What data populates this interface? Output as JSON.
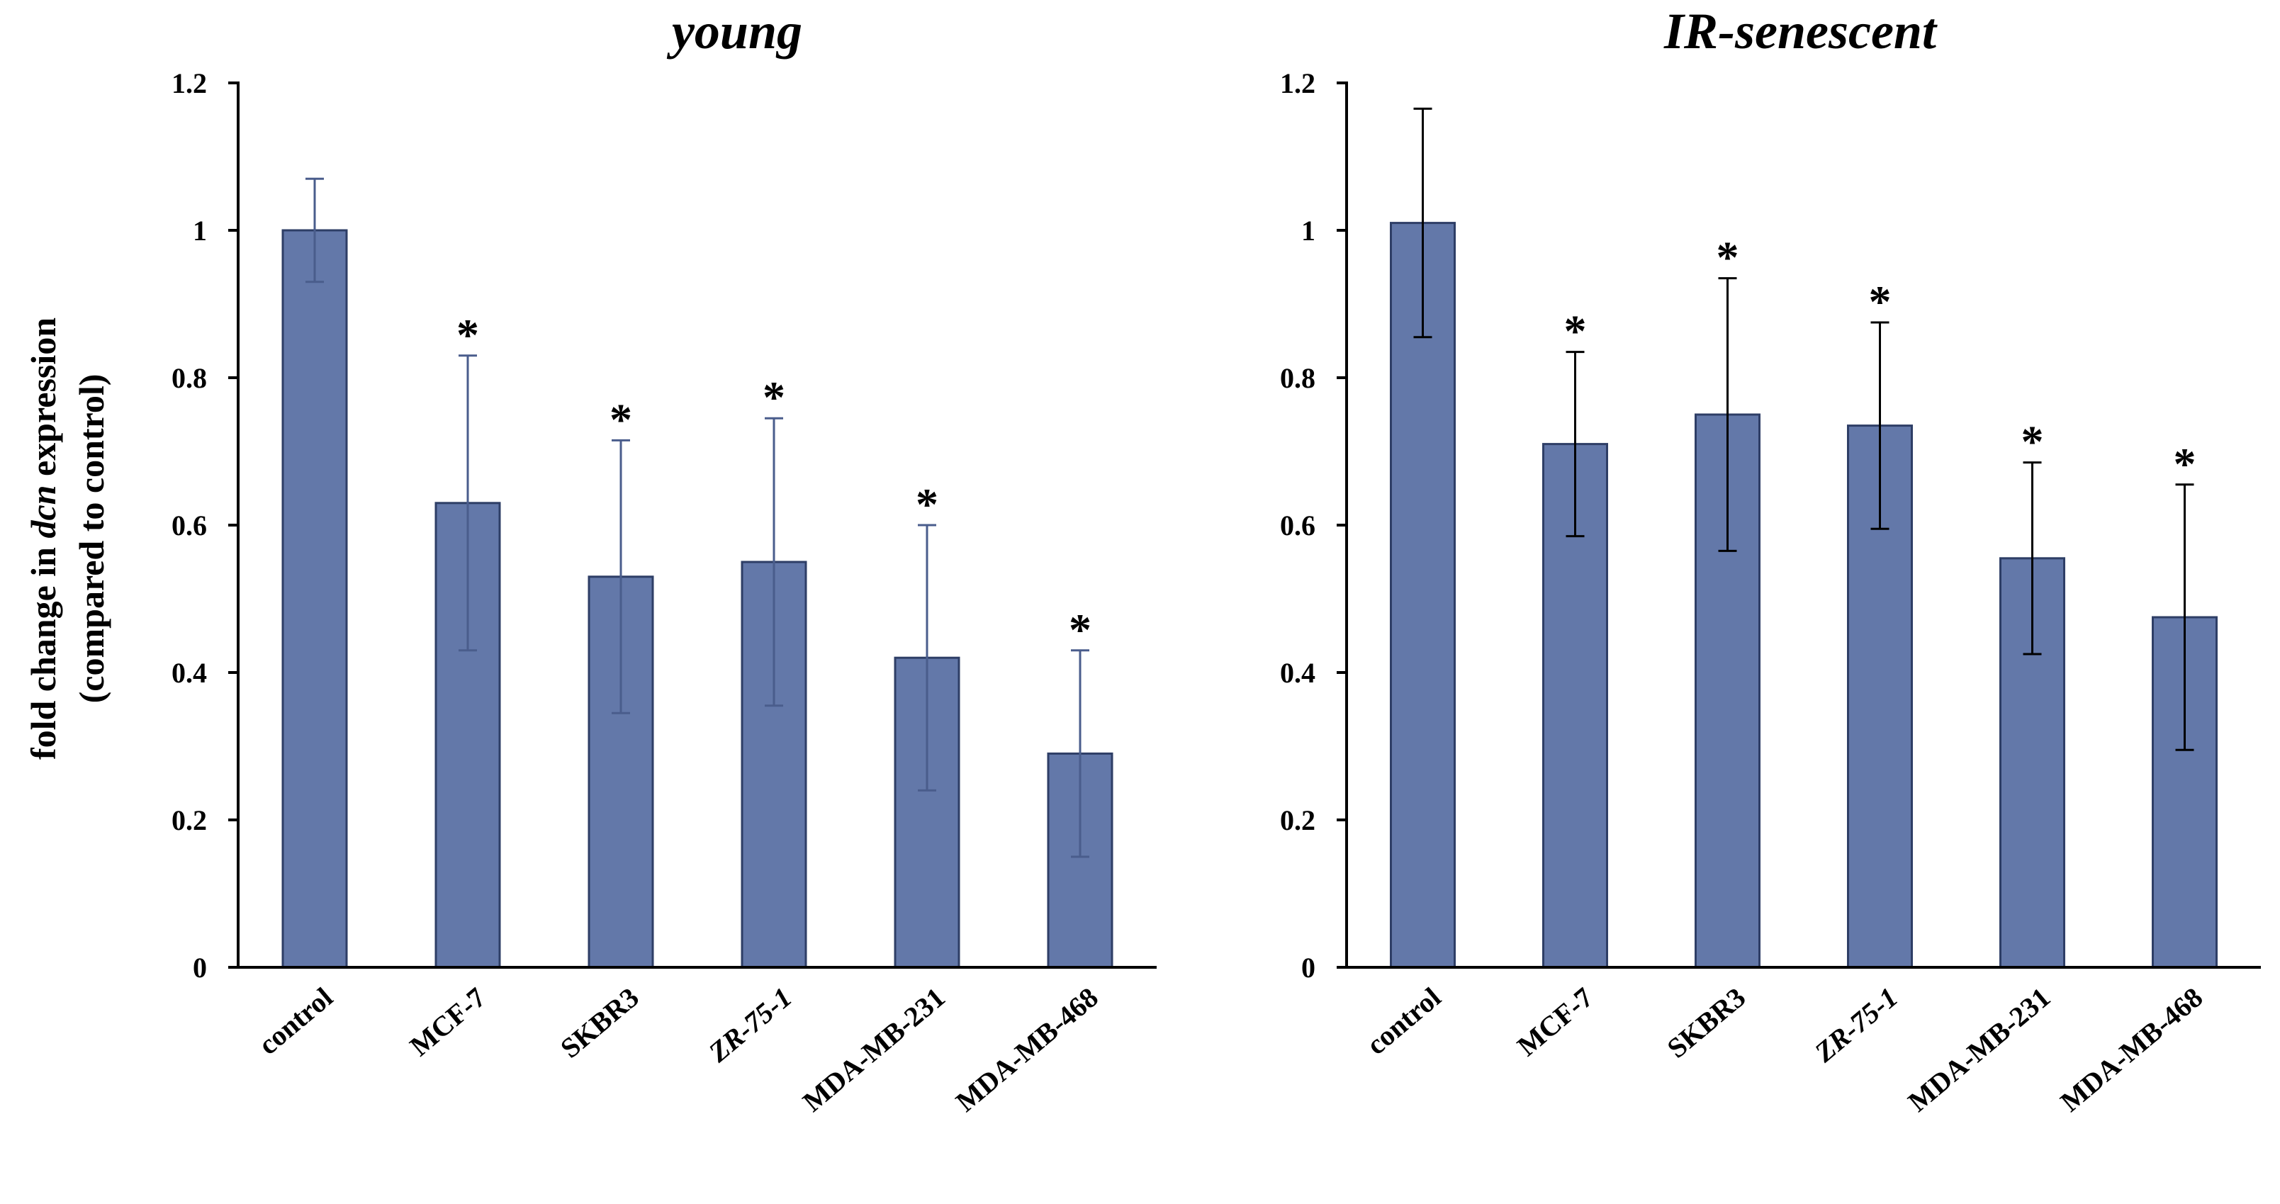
{
  "colors": {
    "bar_fill": "#6378A9",
    "bar_stroke": "#2E3E66",
    "axis": "#000000",
    "text": "#000000"
  },
  "y_axis_label": {
    "line1_before": "fold change in ",
    "line1_italic": "dcn",
    "line1_after": " expression",
    "line2": "(compared to control)"
  },
  "chart_data": [
    {
      "type": "bar",
      "title": "young",
      "categories": [
        "control",
        "MCF-7",
        "SKBR3",
        "ZR-75-1",
        "MDA-MB-231",
        "MDA-MB-468"
      ],
      "category_italic": [
        false,
        false,
        false,
        true,
        false,
        false
      ],
      "values": [
        1.0,
        0.63,
        0.53,
        0.55,
        0.42,
        0.29
      ],
      "error": [
        0.07,
        0.2,
        0.185,
        0.195,
        0.18,
        0.14
      ],
      "error_color": "#4A5D8C",
      "significance": [
        "",
        "*",
        "*",
        "*",
        "*",
        "*"
      ],
      "ylim": [
        0,
        1.2
      ],
      "yticks": [
        0,
        0.2,
        0.4,
        0.6,
        0.8,
        1,
        1.2
      ],
      "ytick_labels": [
        "0",
        "0.2",
        "0.4",
        "0.6",
        "0.8",
        "1",
        "1.2"
      ],
      "ylabel": "fold change in dcn expression (compared to control)",
      "xlabel": "",
      "grid": false
    },
    {
      "type": "bar",
      "title": "IR-senescent",
      "categories": [
        "control",
        "MCF-7",
        "SKBR3",
        "ZR-75-1",
        "MDA-MB-231",
        "MDA-MB-468"
      ],
      "category_italic": [
        false,
        false,
        false,
        true,
        false,
        false
      ],
      "values": [
        1.01,
        0.71,
        0.75,
        0.735,
        0.555,
        0.475
      ],
      "error": [
        0.155,
        0.125,
        0.185,
        0.14,
        0.13,
        0.18
      ],
      "error_color": "#000000",
      "significance": [
        "",
        "*",
        "*",
        "*",
        "*",
        "*"
      ],
      "ylim": [
        0,
        1.2
      ],
      "yticks": [
        0,
        0.2,
        0.4,
        0.6,
        0.8,
        1,
        1.2
      ],
      "ytick_labels": [
        "0",
        "0.2",
        "0.4",
        "0.6",
        "0.8",
        "1",
        "1.2"
      ],
      "ylabel": "",
      "xlabel": "",
      "grid": false
    }
  ]
}
